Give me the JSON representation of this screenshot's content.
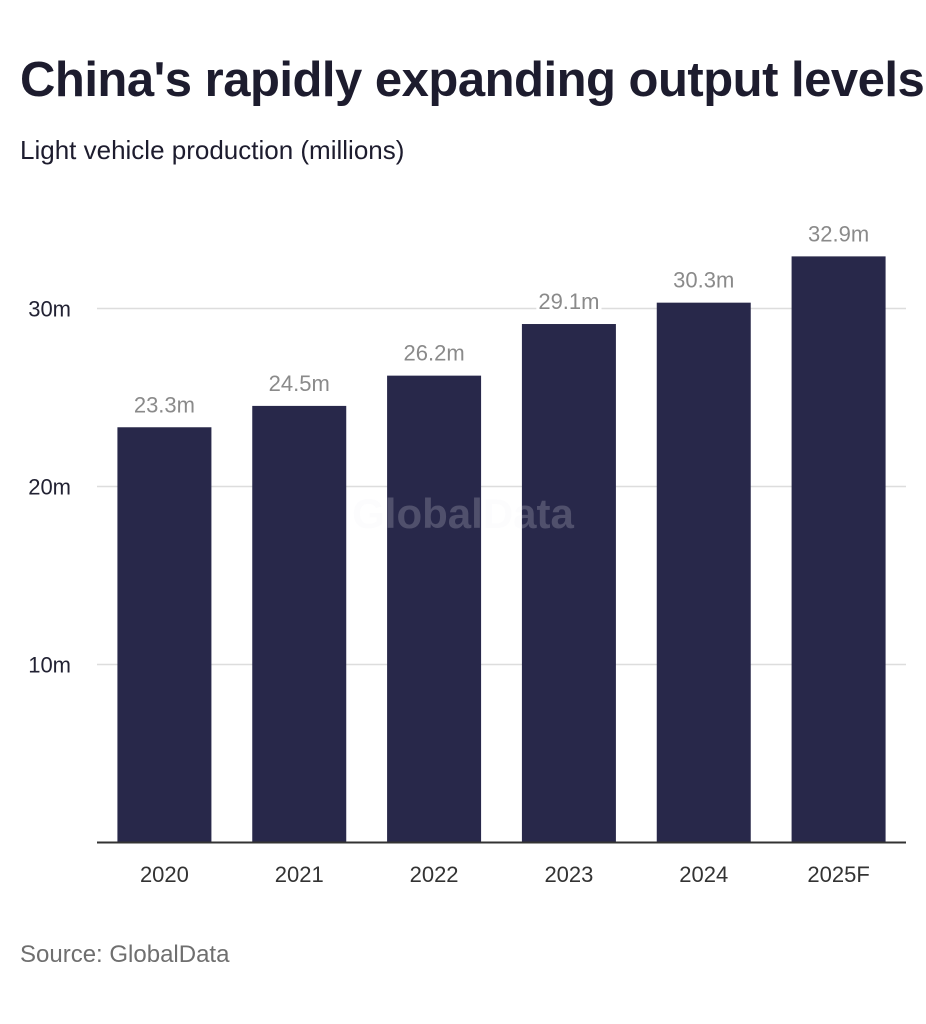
{
  "title": "China's rapidly expanding output levels",
  "subtitle": "Light vehicle production (millions)",
  "source": "Source: GlobalData",
  "watermark": "GlobalData",
  "colors": {
    "bar": "#28284a",
    "grid": "#dddddd",
    "axis": "#333333",
    "value_label": "#8a8a8a"
  },
  "chart_data": {
    "type": "bar",
    "title": "China's rapidly expanding output levels",
    "subtitle": "Light vehicle production (millions)",
    "xlabel": "",
    "ylabel": "",
    "categories": [
      "2020",
      "2021",
      "2022",
      "2023",
      "2024",
      "2025F"
    ],
    "values": [
      23.3,
      24.5,
      26.2,
      29.1,
      30.3,
      32.9
    ],
    "value_labels": [
      "23.3m",
      "24.5m",
      "26.2m",
      "29.1m",
      "30.3m",
      "32.9m"
    ],
    "units": "millions",
    "ylim": [
      0,
      35
    ],
    "yticks": [
      10,
      20,
      30
    ],
    "ytick_labels": [
      "10m",
      "20m",
      "30m"
    ],
    "grid": true,
    "legend": "none",
    "source": "Source: GlobalData"
  }
}
